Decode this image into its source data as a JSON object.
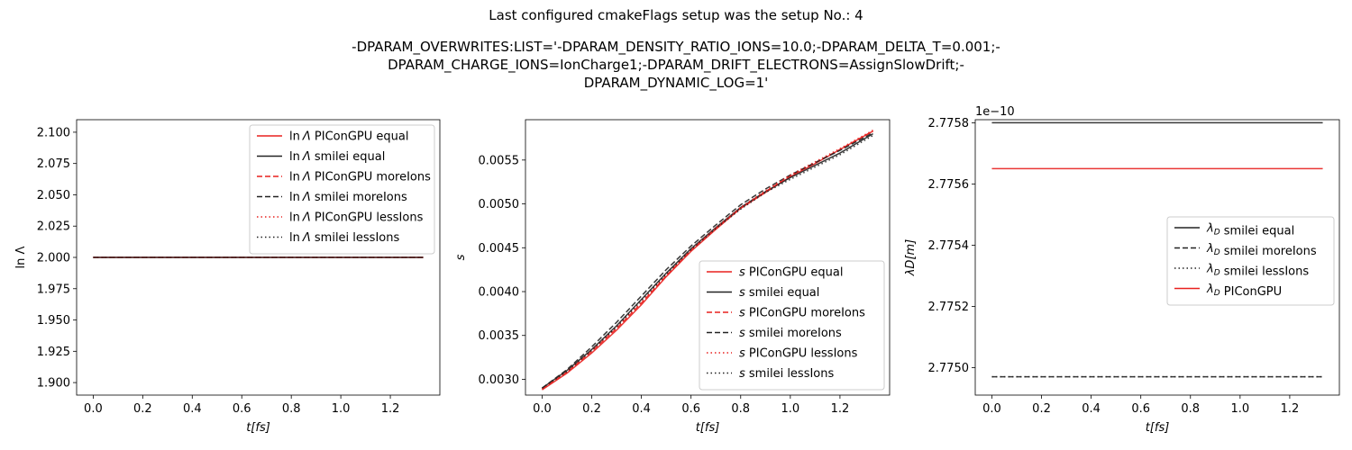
{
  "figure": {
    "title_line1": "Last configured cmakeFlags setup was the setup No.: 4",
    "title_line2": "-DPARAM_OVERWRITES:LIST='-DPARAM_DENSITY_RATIO_IONS=10.0;-DPARAM_DELTA_T=0.001;-",
    "title_line3": "DPARAM_CHARGE_IONS=IonCharge1;-DPARAM_DRIFT_ELECTRONS=AssignSlowDrift;-",
    "title_line4": "DPARAM_DYNAMIC_LOG=1'"
  },
  "colors": {
    "red": "#e8211f",
    "black": "#222222"
  },
  "chart_data": [
    {
      "type": "line",
      "xlabel": "t[fs]",
      "ylabel": "ln Λ",
      "xlim": [
        -0.067,
        1.4
      ],
      "ylim": [
        1.89,
        2.11
      ],
      "xticks": [
        "0.0",
        "0.2",
        "0.4",
        "0.6",
        "0.8",
        "1.0",
        "1.2"
      ],
      "yticks": [
        "1.900",
        "1.925",
        "1.950",
        "1.975",
        "2.000",
        "2.025",
        "2.050",
        "2.075",
        "2.100"
      ],
      "legend_position": "upper right",
      "series": [
        {
          "name": "lnΛ PIConGPU equal",
          "color": "red",
          "dash": "solid",
          "x": [
            0.0,
            1.333
          ],
          "y": [
            2.0,
            2.0
          ]
        },
        {
          "name": "lnΛ smilei equal",
          "color": "black",
          "dash": "solid",
          "x": [
            0.0,
            1.333
          ],
          "y": [
            2.0,
            2.0
          ]
        },
        {
          "name": "lnΛ PIConGPU moreIons",
          "color": "red",
          "dash": "dashed",
          "x": [
            0.0,
            1.333
          ],
          "y": [
            2.0,
            2.0
          ]
        },
        {
          "name": "lnΛ smilei moreIons",
          "color": "black",
          "dash": "dashed",
          "x": [
            0.0,
            1.333
          ],
          "y": [
            2.0,
            2.0
          ]
        },
        {
          "name": "lnΛ PIConGPU lessIons",
          "color": "red",
          "dash": "dotted",
          "x": [
            0.0,
            1.333
          ],
          "y": [
            2.0,
            2.0
          ]
        },
        {
          "name": "lnΛ smilei lessIons",
          "color": "black",
          "dash": "dotted",
          "x": [
            0.0,
            1.333
          ],
          "y": [
            2.0,
            2.0
          ]
        }
      ]
    },
    {
      "type": "line",
      "xlabel": "t[fs]",
      "ylabel": "s",
      "xlim": [
        -0.067,
        1.4
      ],
      "ylim": [
        0.00282,
        0.00596
      ],
      "xticks": [
        "0.0",
        "0.2",
        "0.4",
        "0.6",
        "0.8",
        "1.0",
        "1.2"
      ],
      "yticks": [
        "0.0030",
        "0.0035",
        "0.0040",
        "0.0045",
        "0.0050",
        "0.0055"
      ],
      "legend_position": "lower right",
      "series": [
        {
          "name": "s PIConGPU equal",
          "color": "red",
          "dash": "solid",
          "x": [
            0.0,
            0.1,
            0.2,
            0.3,
            0.4,
            0.5,
            0.6,
            0.7,
            0.8,
            0.9,
            1.0,
            1.1,
            1.2,
            1.333
          ],
          "y": [
            0.00288,
            0.00307,
            0.0033,
            0.00356,
            0.00385,
            0.00417,
            0.00446,
            0.00471,
            0.00495,
            0.00513,
            0.00531,
            0.00546,
            0.00562,
            0.00583
          ]
        },
        {
          "name": "s smilei equal",
          "color": "black",
          "dash": "solid",
          "x": [
            0.0,
            0.1,
            0.2,
            0.3,
            0.4,
            0.5,
            0.6,
            0.7,
            0.8,
            0.9,
            1.0,
            1.1,
            1.2,
            1.333
          ],
          "y": [
            0.0029,
            0.0031,
            0.00334,
            0.00361,
            0.00391,
            0.00421,
            0.00449,
            0.00473,
            0.00496,
            0.00514,
            0.0053,
            0.00544,
            0.00558,
            0.0058
          ]
        },
        {
          "name": "s PIConGPU moreIons",
          "color": "red",
          "dash": "dashed",
          "x": [
            0.0,
            0.1,
            0.2,
            0.3,
            0.4,
            0.5,
            0.6,
            0.7,
            0.8,
            0.9,
            1.0,
            1.1,
            1.2,
            1.333
          ],
          "y": [
            0.00289,
            0.00308,
            0.00332,
            0.00358,
            0.00387,
            0.00418,
            0.00447,
            0.00472,
            0.00495,
            0.00514,
            0.00532,
            0.00547,
            0.00562,
            0.00583
          ]
        },
        {
          "name": "s smilei moreIons",
          "color": "black",
          "dash": "dashed",
          "x": [
            0.0,
            0.1,
            0.2,
            0.3,
            0.4,
            0.5,
            0.6,
            0.7,
            0.8,
            0.9,
            1.0,
            1.1,
            1.2,
            1.333
          ],
          "y": [
            0.0029,
            0.00311,
            0.00337,
            0.00365,
            0.00395,
            0.00425,
            0.00452,
            0.00476,
            0.00499,
            0.00517,
            0.00533,
            0.00547,
            0.00561,
            0.00581
          ]
        },
        {
          "name": "s PIConGPU lessIons",
          "color": "red",
          "dash": "dotted",
          "x": [
            0.0,
            0.1,
            0.2,
            0.3,
            0.4,
            0.5,
            0.6,
            0.7,
            0.8,
            0.9,
            1.0,
            1.1,
            1.2,
            1.333
          ],
          "y": [
            0.00289,
            0.00309,
            0.00333,
            0.00359,
            0.00388,
            0.00419,
            0.00448,
            0.00473,
            0.00496,
            0.00515,
            0.00533,
            0.00548,
            0.00563,
            0.00584
          ]
        },
        {
          "name": "s smilei lessIons",
          "color": "black",
          "dash": "dotted",
          "x": [
            0.0,
            0.1,
            0.2,
            0.3,
            0.4,
            0.5,
            0.6,
            0.7,
            0.8,
            0.9,
            1.0,
            1.1,
            1.2,
            1.333
          ],
          "y": [
            0.0029,
            0.00309,
            0.00333,
            0.0036,
            0.0039,
            0.0042,
            0.00448,
            0.00472,
            0.00494,
            0.00513,
            0.00528,
            0.00542,
            0.00556,
            0.00578
          ]
        }
      ]
    },
    {
      "type": "line",
      "xlabel": "t[fs]",
      "ylabel": "λD[m]",
      "offset_text": "1e−10",
      "xlim": [
        -0.067,
        1.4
      ],
      "ylim": [
        2.77491,
        2.77581
      ],
      "xticks": [
        "0.0",
        "0.2",
        "0.4",
        "0.6",
        "0.8",
        "1.0",
        "1.2"
      ],
      "ytick_values": [
        2.775,
        2.7752,
        2.7754,
        2.7756,
        2.7758
      ],
      "yticks": [
        "2.7750",
        "2.7752",
        "2.7754",
        "2.7756",
        "2.7758"
      ],
      "legend_position": "center right",
      "series": [
        {
          "name": "λD smilei equal",
          "color": "black",
          "dash": "solid",
          "x": [
            0.0,
            1.333
          ],
          "y": [
            2.7758,
            2.7758
          ]
        },
        {
          "name": "λD smilei moreIons",
          "color": "black",
          "dash": "dashed",
          "x": [
            0.0,
            1.333
          ],
          "y": [
            2.77497,
            2.77497
          ]
        },
        {
          "name": "λD smilei lessIons",
          "color": "black",
          "dash": "dotted",
          "x": [
            0.0,
            1.333
          ],
          "y": [
            2.77497,
            2.77497
          ]
        },
        {
          "name": "λD PIConGPU",
          "color": "red",
          "dash": "solid",
          "x": [
            0.0,
            1.333
          ],
          "y": [
            2.77565,
            2.77565
          ]
        }
      ]
    }
  ]
}
